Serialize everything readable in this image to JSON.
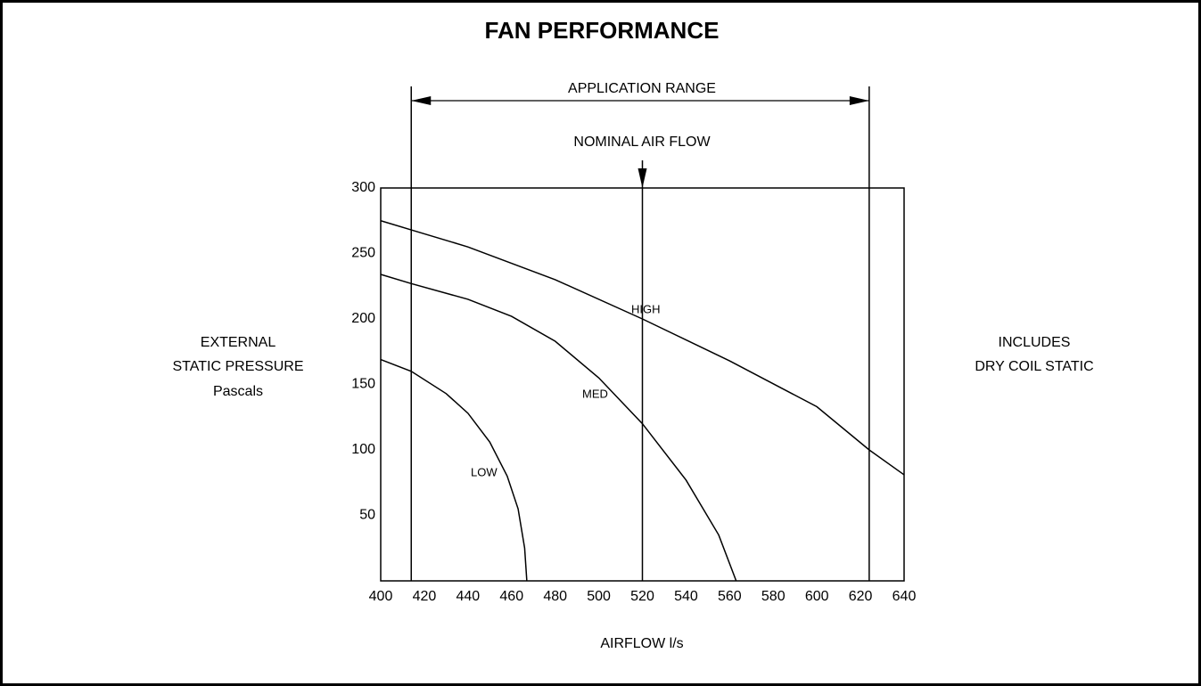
{
  "chart_data": {
    "type": "line",
    "title": "FAN PERFORMANCE",
    "x_label": "AIRFLOW l/s",
    "y_label": [
      "EXTERNAL",
      "STATIC PRESSURE",
      "Pascals"
    ],
    "note": [
      "INCLUDES",
      "DRY COIL STATIC"
    ],
    "xlim": [
      400,
      640
    ],
    "ylim": [
      0,
      300
    ],
    "xticks": [
      400,
      420,
      440,
      460,
      480,
      500,
      520,
      540,
      560,
      580,
      600,
      620,
      640
    ],
    "yticks": [
      50,
      100,
      150,
      200,
      250,
      300
    ],
    "application_range": {
      "label": "APPLICATION RANGE",
      "from": 414,
      "to": 624
    },
    "nominal_air_flow": {
      "label": "NOMINAL AIR FLOW",
      "x": 520
    },
    "series": [
      {
        "name": "HIGH",
        "color": "#000000",
        "x": [
          400,
          414,
          440,
          480,
          520,
          560,
          600,
          624,
          640
        ],
        "values": [
          275,
          268,
          255,
          230,
          200,
          168,
          133,
          100,
          81
        ]
      },
      {
        "name": "MED",
        "color": "#000000",
        "x": [
          400,
          414,
          440,
          460,
          480,
          500,
          520,
          540,
          555,
          563
        ],
        "values": [
          234,
          227,
          215,
          202,
          183,
          155,
          120,
          77,
          35,
          0
        ]
      },
      {
        "name": "LOW",
        "color": "#000000",
        "x": [
          400,
          414,
          430,
          440,
          450,
          458,
          463,
          466,
          467
        ],
        "values": [
          169,
          160,
          143,
          128,
          106,
          80,
          55,
          25,
          0
        ]
      }
    ]
  }
}
